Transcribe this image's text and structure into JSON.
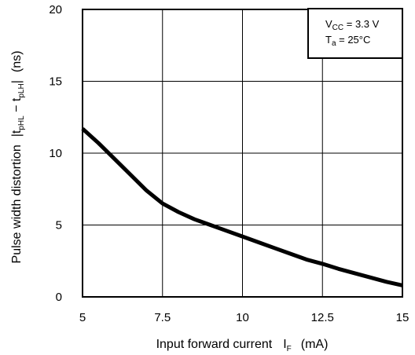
{
  "chart_data": {
    "type": "line",
    "xlabel": {
      "main": "Input forward current",
      "symbol": "I",
      "symbol_sub": "F",
      "unit": "(mA)"
    },
    "ylabel": {
      "main": "Pulse width distortion",
      "bar_left": "|t",
      "sub1": "pHL",
      "minus": " − t",
      "sub2": "pLH",
      "bar_right": "|",
      "unit": "(ns)"
    },
    "xlim": [
      5,
      15
    ],
    "ylim": [
      0,
      20
    ],
    "x_ticks": [
      {
        "value": 5,
        "label": "5"
      },
      {
        "value": 7.5,
        "label": "7.5"
      },
      {
        "value": 10,
        "label": "10"
      },
      {
        "value": 12.5,
        "label": "12.5"
      },
      {
        "value": 15,
        "label": "15"
      }
    ],
    "y_ticks": [
      {
        "value": 0,
        "label": "0"
      },
      {
        "value": 5,
        "label": "5"
      },
      {
        "value": 10,
        "label": "10"
      },
      {
        "value": 15,
        "label": "15"
      },
      {
        "value": 20,
        "label": "20"
      }
    ],
    "grid": true,
    "conditions": {
      "line1_main": "V",
      "line1_sub": "CC",
      "line1_value": " = 3.3 V",
      "line2_main": "T",
      "line2_sub": "a",
      "line2_value": " = 25°C"
    },
    "series": [
      {
        "x": [
          5,
          5.5,
          6,
          6.5,
          7,
          7.5,
          8,
          8.5,
          9,
          9.5,
          10,
          10.5,
          11,
          11.5,
          12,
          12.5,
          13,
          13.5,
          14,
          14.5,
          15
        ],
        "y": [
          11.7,
          10.7,
          9.6,
          8.5,
          7.4,
          6.5,
          5.9,
          5.4,
          5.0,
          4.6,
          4.2,
          3.8,
          3.4,
          3.0,
          2.6,
          2.3,
          1.95,
          1.65,
          1.35,
          1.05,
          0.8
        ]
      }
    ]
  }
}
